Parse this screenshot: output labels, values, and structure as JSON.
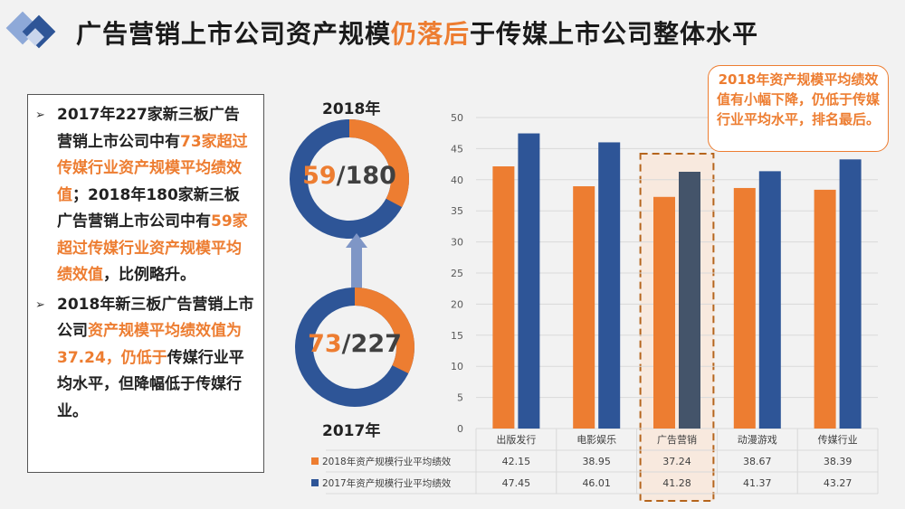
{
  "title": {
    "part1": "广告营销上市公司资产规模",
    "highlight": "仍落后",
    "part2": "于传媒上市公司整体水平"
  },
  "textbox": {
    "para1": [
      {
        "t": "2017年227家新三板广告营销上市公司中有",
        "c": "dark"
      },
      {
        "t": "73家超过传媒行业资产规模平均绩效值",
        "c": "orange"
      },
      {
        "t": "；2018年180家新三板广告营销上市公司中有",
        "c": "dark"
      },
      {
        "t": "59家超过传媒行业资产规模平均绩效值",
        "c": "orange"
      },
      {
        "t": "，比例略升。",
        "c": "dark"
      }
    ],
    "para2": [
      {
        "t": "2018年新三板广告营销上市公司",
        "c": "dark"
      },
      {
        "t": "资产规模平均绩效值为37.24，仍低于",
        "c": "orange"
      },
      {
        "t": "传媒行业平均水平，但降幅低于传媒行业。",
        "c": "dark"
      }
    ]
  },
  "donut_top": {
    "year": "2018年",
    "num": "59",
    "den": "/180",
    "fraction": 0.328
  },
  "donut_bottom": {
    "year": "2017年",
    "num": "73",
    "den": "/227",
    "fraction": 0.322
  },
  "callout": "2018年资产规模平均绩效值有小幅下降，仍低于传媒行业平均水平，排名最后。",
  "colors": {
    "orange": "#ed7d31",
    "blue": "#2e5597",
    "highlight_blue": "#44546a",
    "ring_bg": "#2e5597"
  },
  "chart_data": {
    "type": "bar",
    "categories": [
      "出版发行",
      "电影娱乐",
      "广告营销",
      "动漫游戏",
      "传媒行业"
    ],
    "series": [
      {
        "name": "2018年资产规模行业平均绩效",
        "values": [
          42.15,
          38.95,
          37.24,
          38.67,
          38.39
        ],
        "color": "#ed7d31"
      },
      {
        "name": "2017年资产规模行业平均绩效",
        "values": [
          47.45,
          46.01,
          41.28,
          41.37,
          43.27
        ],
        "color": "#2e5597"
      }
    ],
    "table_values": [
      [
        "42.15",
        "38.95",
        "37.24",
        "38.67",
        "38.39"
      ],
      [
        "47.45",
        "46.01",
        "41.28",
        "41.37",
        "43.27"
      ]
    ],
    "ylim": [
      0,
      50
    ],
    "yticks": [
      0,
      5,
      10,
      15,
      20,
      25,
      30,
      35,
      40,
      45,
      50
    ],
    "highlight_category": "广告营销",
    "grid": true,
    "legend": "data-table-bottom"
  }
}
